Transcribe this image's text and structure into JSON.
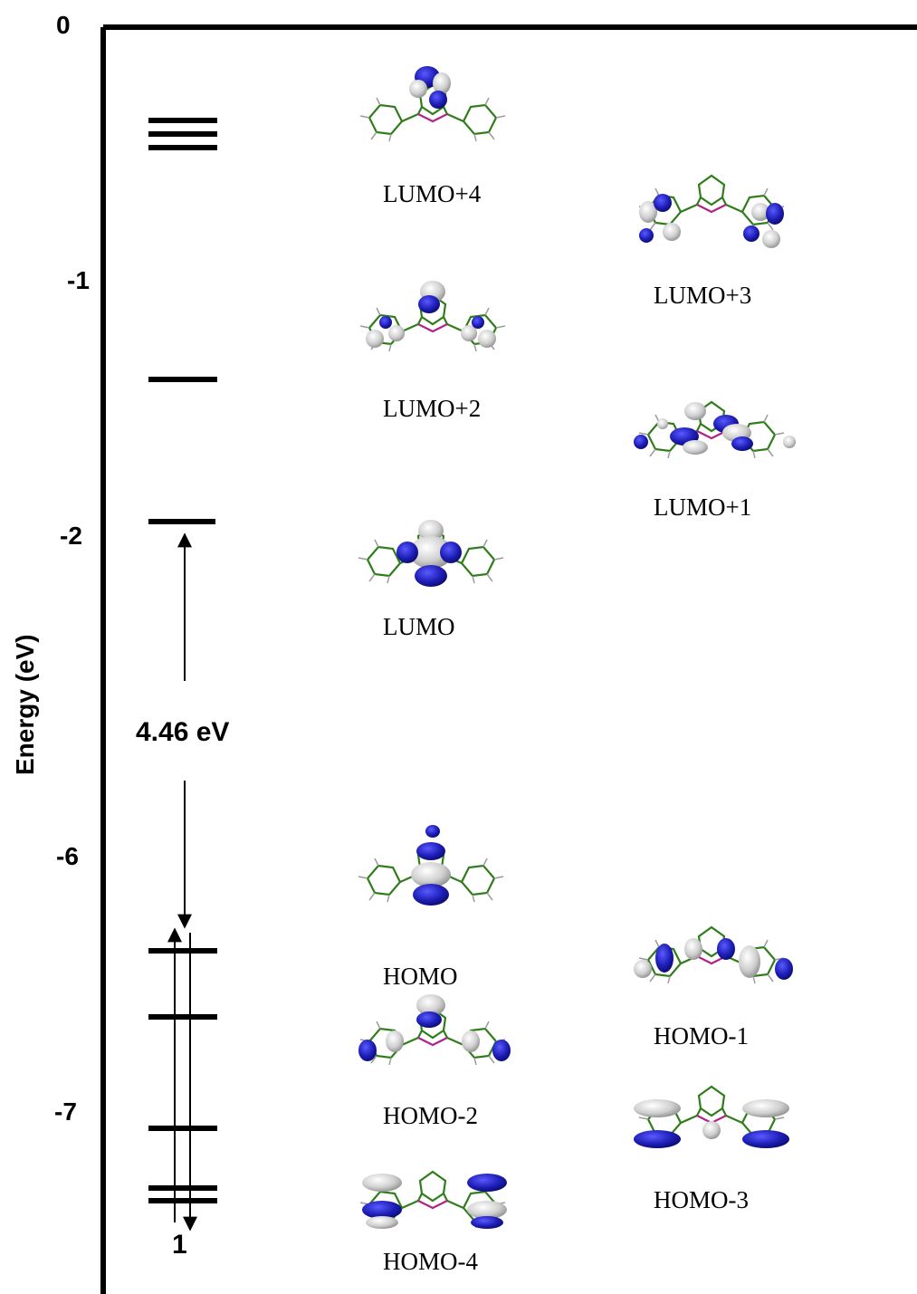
{
  "chart_data": {
    "type": "energy-level-diagram",
    "ylabel": "Energy (eV)",
    "y_tick_labels": [
      "0",
      "-1",
      "-2",
      "-6",
      "-7"
    ],
    "x_label": "1",
    "gap_annotation": "4.46 eV",
    "axis_break": "between -2 and -6",
    "levels_eV": [
      -0.4,
      -0.44,
      -0.48,
      -1.38,
      -1.94,
      -6.4,
      -6.66,
      -7.07,
      -7.3,
      -7.35
    ],
    "orbitals": [
      {
        "name": "LUMO+4",
        "energy": -0.44
      },
      {
        "name": "LUMO+3",
        "energy": -0.48
      },
      {
        "name": "LUMO+2",
        "energy": -0.4
      },
      {
        "name": "LUMO+1",
        "energy": -1.38
      },
      {
        "name": "LUMO",
        "energy": -1.94
      },
      {
        "name": "HOMO",
        "energy": -6.4
      },
      {
        "name": "HOMO-1",
        "energy": -6.66
      },
      {
        "name": "HOMO-2",
        "energy": -7.07
      },
      {
        "name": "HOMO-3",
        "energy": -7.3
      },
      {
        "name": "HOMO-4",
        "energy": -7.35
      }
    ],
    "colors": {
      "frame": "#000000",
      "lobe_blue": "#1a1aa8",
      "lobe_white": "#d9d9d9",
      "bond_green": "#2f7d1a",
      "bond_magenta": "#b0228c"
    }
  }
}
